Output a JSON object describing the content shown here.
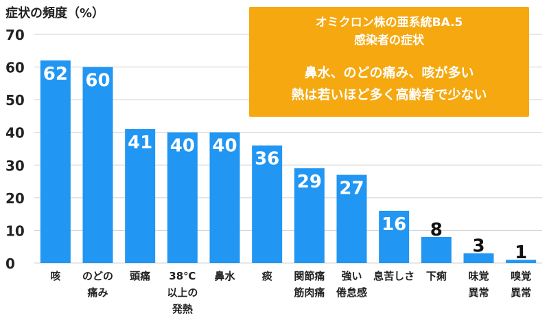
{
  "chart_data": {
    "type": "bar",
    "title": "症状の頻度（%）",
    "ylim": [
      0,
      70
    ],
    "yticks": [
      0,
      10,
      20,
      30,
      40,
      50,
      60,
      70
    ],
    "grid": true,
    "categories": [
      [
        "咳"
      ],
      [
        "のどの",
        "痛み"
      ],
      [
        "頭痛"
      ],
      [
        "38℃",
        "以上の",
        "発熱"
      ],
      [
        "鼻水"
      ],
      [
        "痰"
      ],
      [
        "関節痛",
        "筋肉痛"
      ],
      [
        "強い",
        "倦怠感"
      ],
      [
        "息苦しさ"
      ],
      [
        "下痢"
      ],
      [
        "味覚",
        "異常"
      ],
      [
        "嗅覚",
        "異常"
      ]
    ],
    "values": [
      62,
      60,
      41,
      40,
      40,
      36,
      29,
      27,
      16,
      8,
      3,
      1
    ],
    "bar_color": "#2196f3"
  },
  "infobox": {
    "title_lines": [
      "オミクロン株の亜系統BA.5",
      "感染者の症状"
    ],
    "summary_lines": [
      "鼻水、のどの痛み、咳が多い",
      "熱は若いほど多く高齢者で少ない"
    ]
  }
}
